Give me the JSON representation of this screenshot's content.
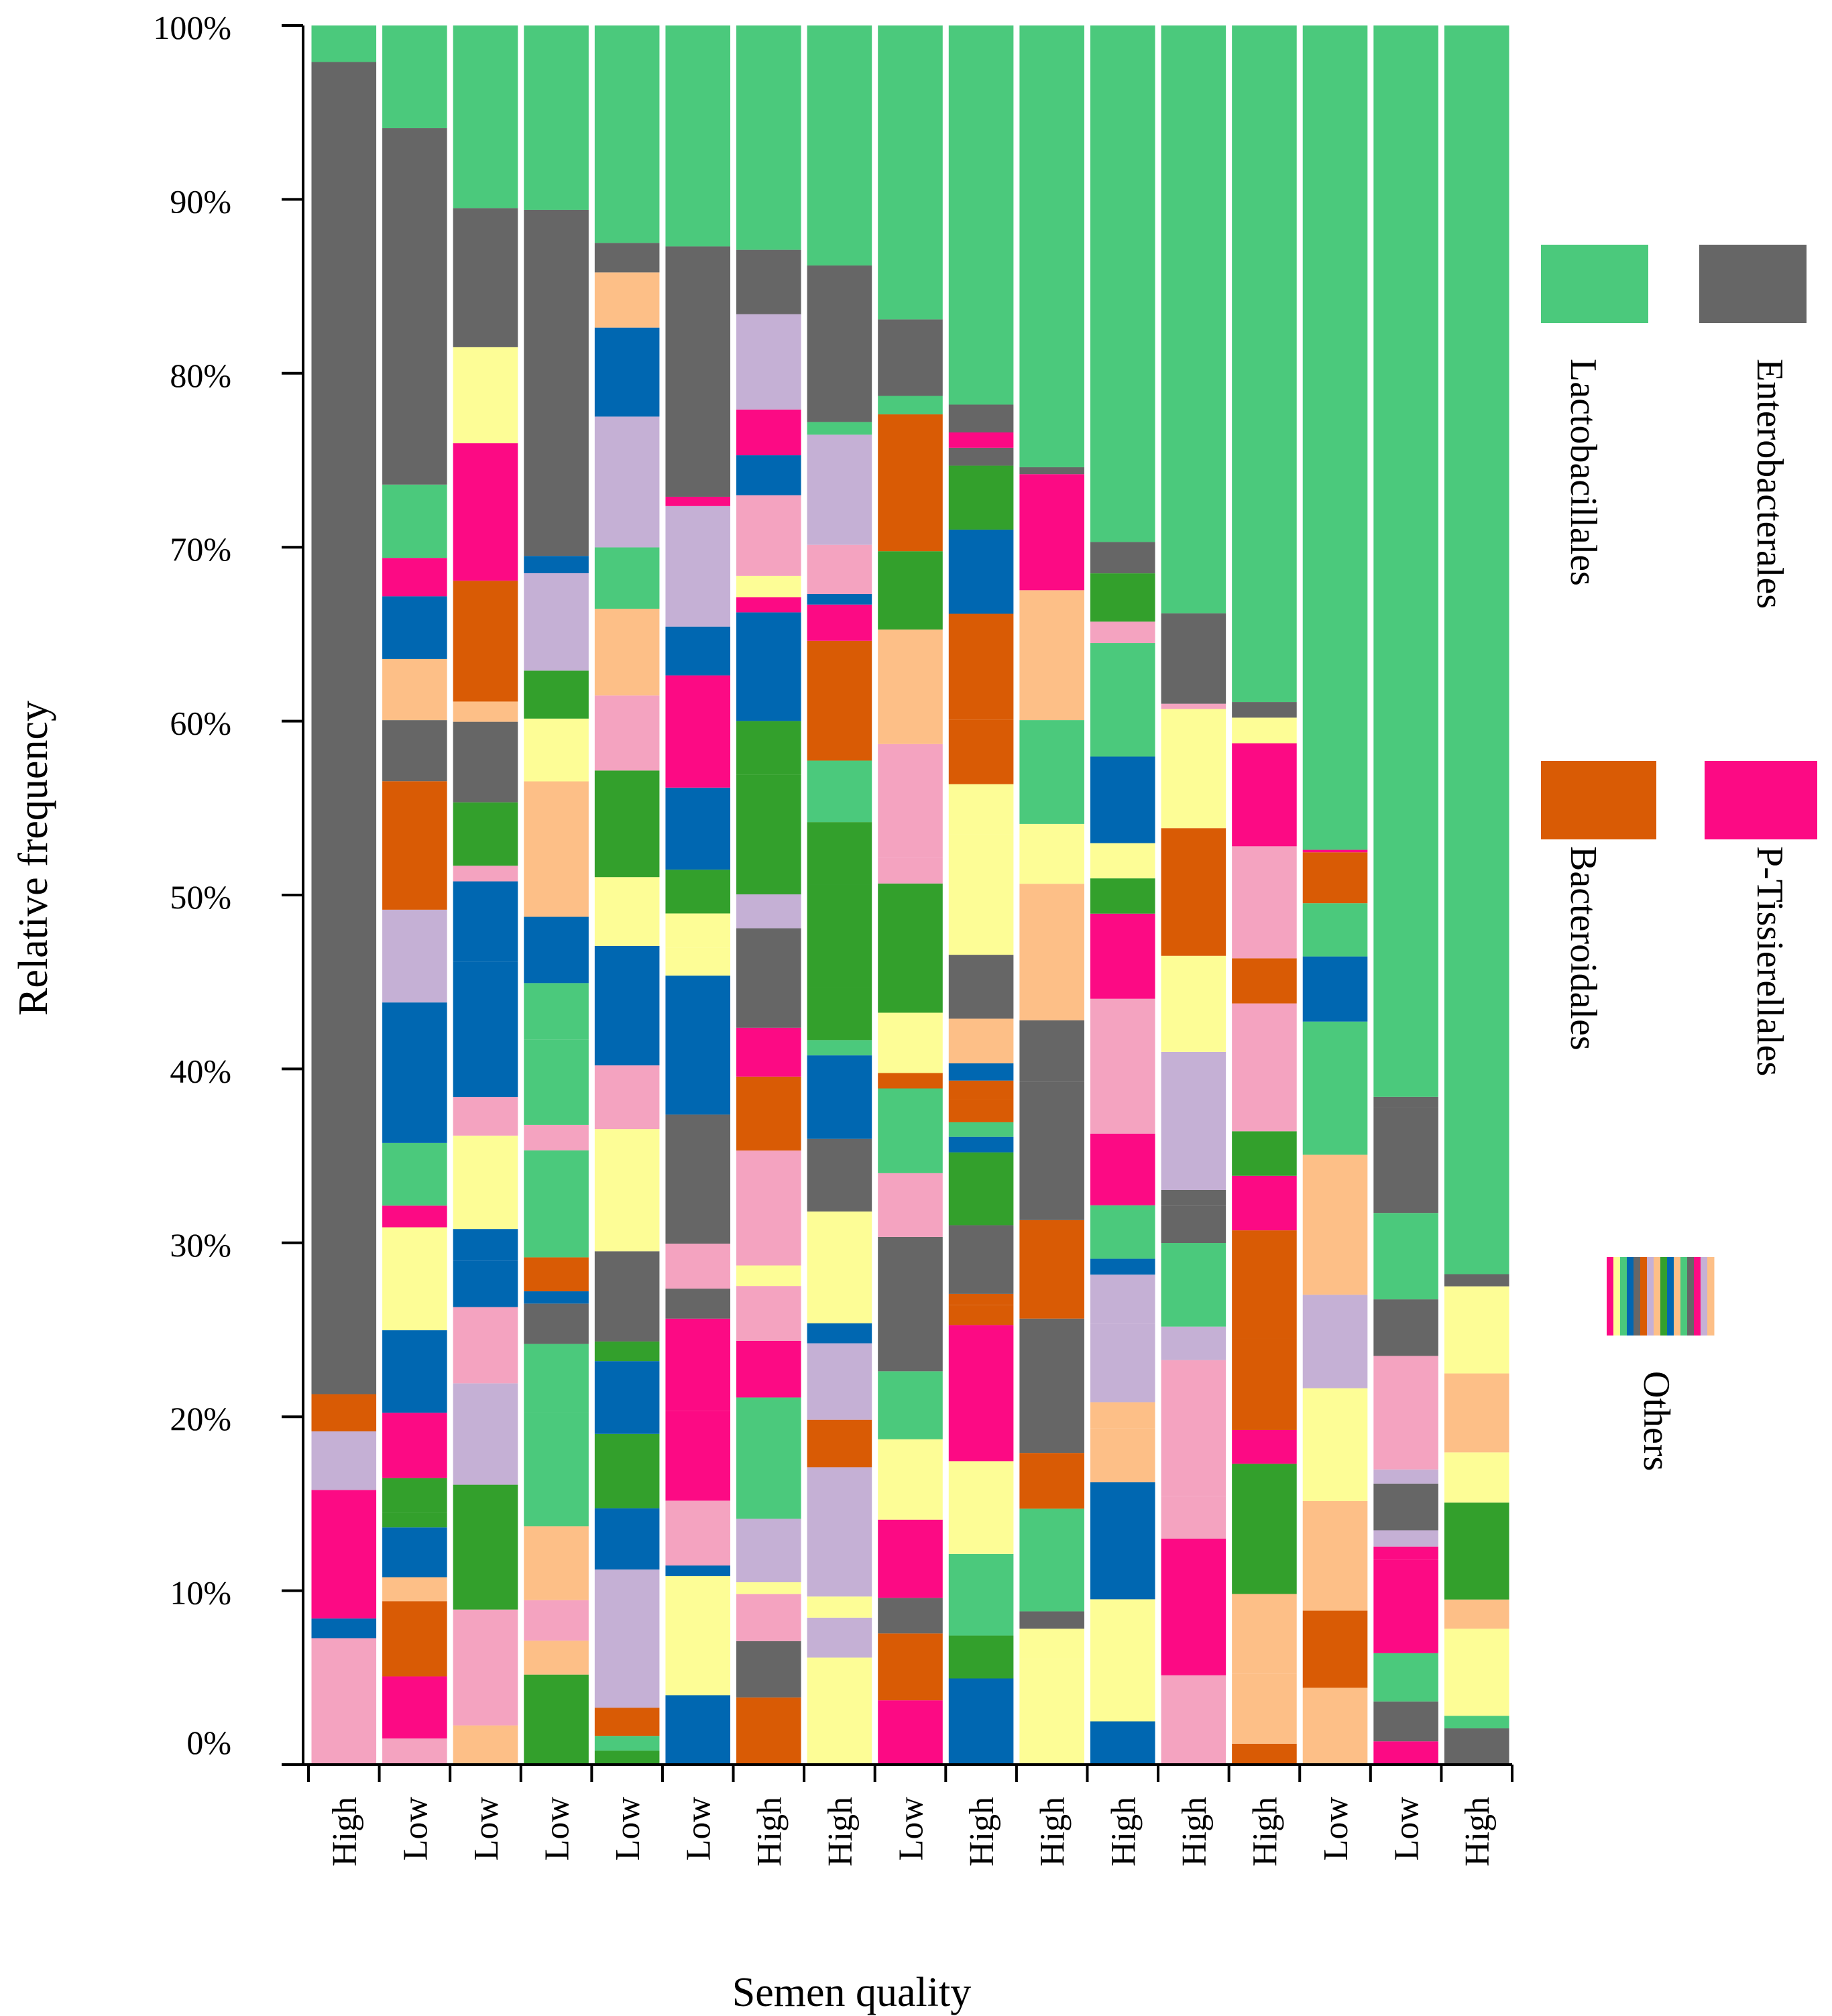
{
  "chart_data": {
    "type": "bar",
    "stacked": true,
    "title": "",
    "xlabel": "Semen quality",
    "ylabel": "Relative frequency",
    "ylim": [
      0,
      100
    ],
    "yticks": [
      "0%",
      "10%",
      "20%",
      "30%",
      "40%",
      "50%",
      "60%",
      "70%",
      "80%",
      "90%",
      "100%"
    ],
    "categories": [
      "High",
      "Low",
      "Low",
      "Low",
      "Low",
      "Low",
      "High",
      "High",
      "Low",
      "High",
      "High",
      "High",
      "High",
      "High",
      "Low",
      "Low",
      "High"
    ],
    "series": [
      {
        "name": "Others",
        "color_pattern": "multicolor",
        "values": [
          21.3,
          73.6,
          81.5,
          69.5,
          85.8,
          72.9,
          83.4,
          77.2,
          78.7,
          76.6,
          74.2,
          68.5,
          61.0,
          60.2,
          52.6,
          37.8,
          27.5
        ]
      },
      {
        "name": "Enterobacterales",
        "color": "#666666",
        "values": [
          76.6,
          20.5,
          8.0,
          19.9,
          1.7,
          14.4,
          3.7,
          9.0,
          4.4,
          1.6,
          0.4,
          1.8,
          5.2,
          0.9,
          0.0,
          0.6,
          0.7
        ]
      },
      {
        "name": "Lactobacillales",
        "color": "#4bc97c",
        "values": [
          2.1,
          5.9,
          10.5,
          10.6,
          12.5,
          12.7,
          12.9,
          13.8,
          16.9,
          21.8,
          25.4,
          29.7,
          33.8,
          38.9,
          47.4,
          61.6,
          71.8
        ]
      }
    ],
    "legend": {
      "placement": "right",
      "entries": [
        {
          "label": "Lactobacillales",
          "color": "#4bc97c"
        },
        {
          "label": "Enterobacterales",
          "color": "#666666"
        },
        {
          "label": "Bacteroidales",
          "color": "#d95b05"
        },
        {
          "label": "P-Tissierellales",
          "color": "#fc0a84"
        },
        {
          "label": "Others",
          "color": "multicolor"
        }
      ]
    }
  }
}
